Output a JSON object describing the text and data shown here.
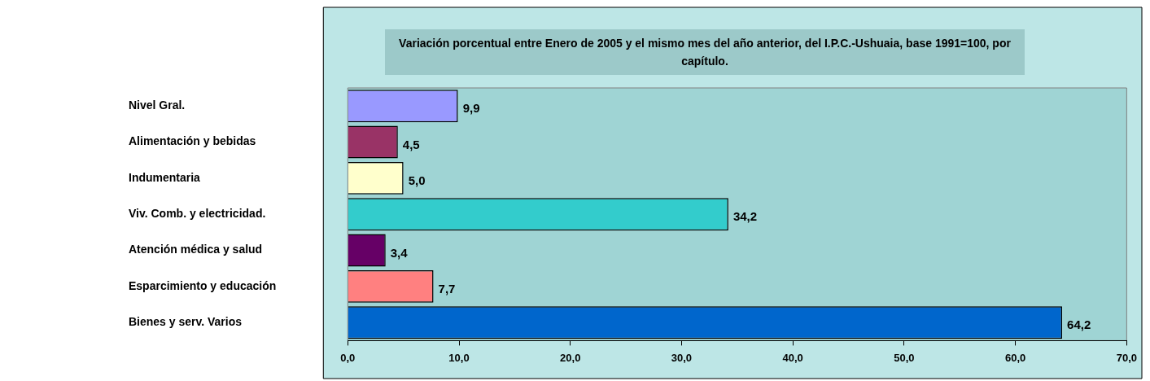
{
  "chart_data": {
    "type": "bar",
    "orientation": "horizontal",
    "title": "Variación porcentual  entre Enero de 2005 y el mismo mes del año anterior, del I.P.C.-Ushuaia, base 1991=100, por capítulo.",
    "categories": [
      "Nivel Gral.",
      "Alimentación y bebidas",
      "Indumentaria",
      "Viv. Comb. y electricidad.",
      "Atención médica y salud",
      "Esparcimiento y educación",
      "Bienes y serv. Varios"
    ],
    "values": [
      9.9,
      4.5,
      5.0,
      34.2,
      3.4,
      7.7,
      64.2
    ],
    "value_labels": [
      "9,9",
      "4,5",
      "5,0",
      "34,2",
      "3,4",
      "7,7",
      "64,2"
    ],
    "colors": [
      "#9999ff",
      "#993366",
      "#ffffcc",
      "#33cccc",
      "#660066",
      "#ff8080",
      "#0066cc"
    ],
    "xlim": [
      0,
      70
    ],
    "xticks": [
      {
        "value": 0,
        "label": "0,0"
      },
      {
        "value": 10,
        "label": "10,0"
      },
      {
        "value": 20,
        "label": "20,0"
      },
      {
        "value": 30,
        "label": "30,0"
      },
      {
        "value": 40,
        "label": "40,0"
      },
      {
        "value": 50,
        "label": "50,0"
      },
      {
        "value": 60,
        "label": "60,0"
      },
      {
        "value": 70,
        "label": "70,0"
      }
    ]
  }
}
